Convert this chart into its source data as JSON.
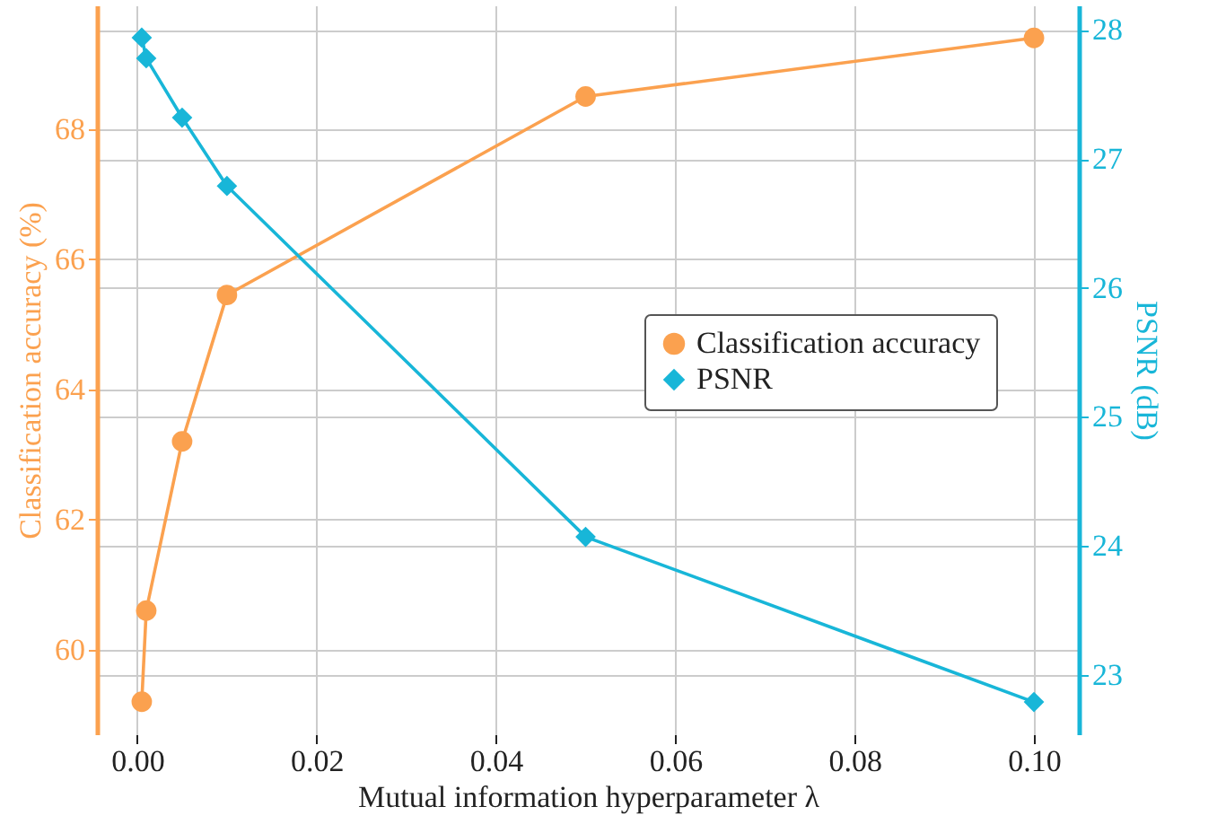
{
  "chart_data": {
    "type": "line",
    "xlabel": "Mutual information hyperparameter λ",
    "ylabel": "Classification accuracy (%)",
    "y2label": "PSNR (dB)",
    "x": [
      0.0005,
      0.001,
      0.005,
      0.01,
      0.05,
      0.1
    ],
    "series": [
      {
        "name": "Classification accuracy",
        "color": "#fba14f",
        "marker": "circle",
        "values": [
          59.2,
          60.6,
          63.2,
          65.45,
          68.5,
          69.4
        ]
      },
      {
        "name": "PSNR",
        "color": "#18b6d8",
        "marker": "diamond",
        "axis": "y2",
        "values": [
          27.94,
          27.78,
          27.32,
          26.79,
          24.07,
          22.79
        ]
      }
    ],
    "xlim": [
      -0.0045,
      0.105
    ],
    "xticks": [
      {
        "value": 0,
        "label": "0.00"
      },
      {
        "value": 0.02,
        "label": "0.02"
      },
      {
        "value": 0.04,
        "label": "0.04"
      },
      {
        "value": 0.06,
        "label": "0.06"
      },
      {
        "value": 0.08,
        "label": "0.08"
      },
      {
        "value": 0.1,
        "label": "0.10"
      }
    ],
    "ylim": [
      58.7,
      69.9
    ],
    "yticks": [
      60,
      62,
      64,
      66,
      68
    ],
    "y2lim": [
      22.54,
      28.19
    ],
    "y2ticks": [
      23,
      24,
      25,
      26,
      27,
      28
    ],
    "grid": true,
    "legend": "right"
  }
}
